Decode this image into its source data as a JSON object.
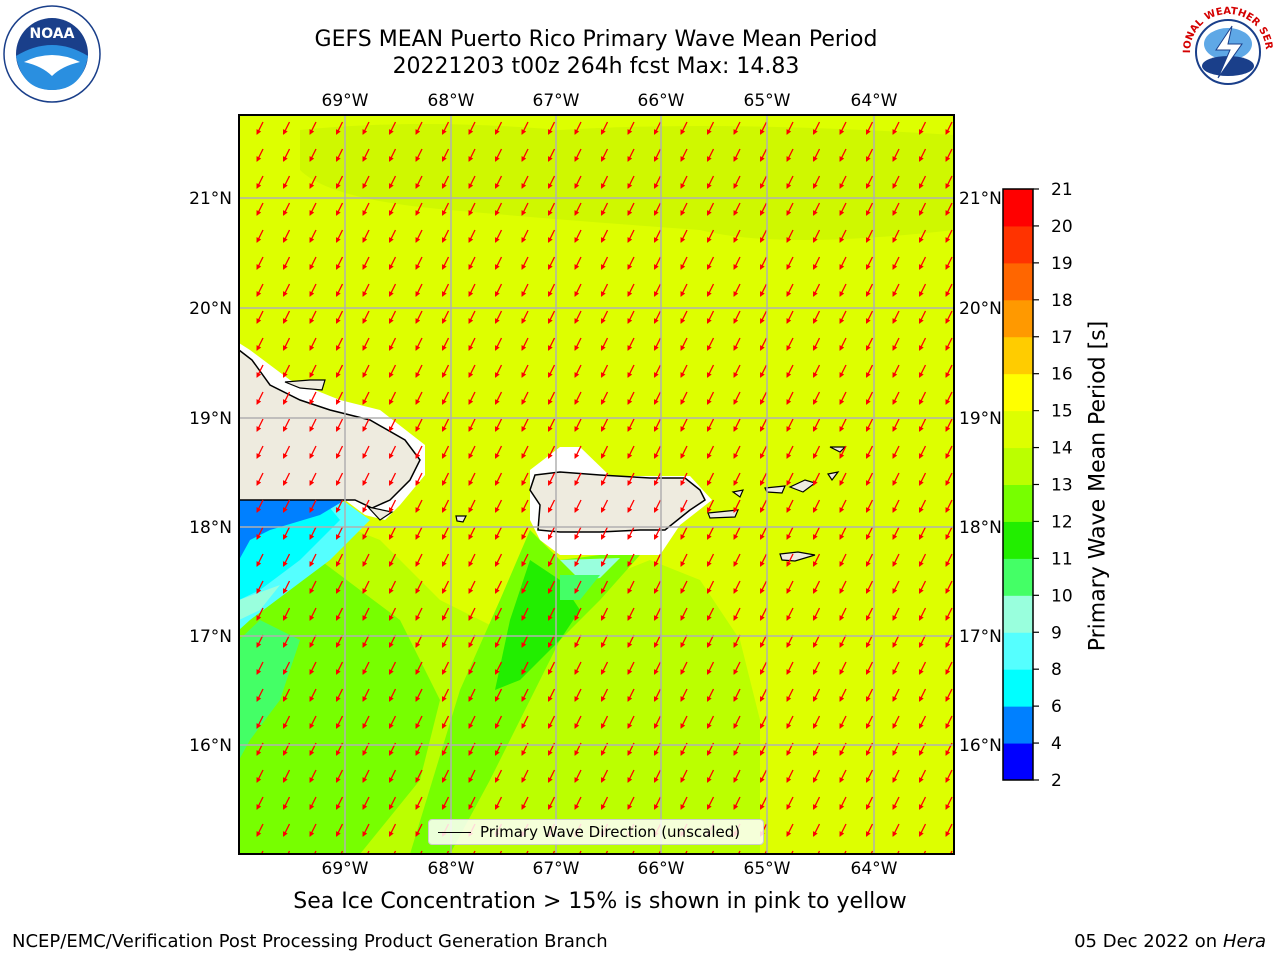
{
  "header": {
    "title_line1": "GEFS MEAN Puerto Rico Primary Wave Mean Period",
    "title_line2": "20221203 t00z 264h fcst   Max: 14.83"
  },
  "logos": {
    "noaa": {
      "text": "NOAA",
      "ring_text": "NATIONAL OCEANIC AND ATMOSPHERIC ADMINISTRATION · U.S. DEPARTMENT OF COMMERCE",
      "icon": "noaa-logo-icon"
    },
    "nws": {
      "ring_text": "NATIONAL WEATHER SERVICE",
      "icon": "nws-logo-icon"
    }
  },
  "map": {
    "lon_labels": [
      "69°W",
      "68°W",
      "67°W",
      "66°W",
      "65°W",
      "64°W"
    ],
    "lat_labels": [
      "21°N",
      "20°N",
      "19°N",
      "18°N",
      "17°N",
      "16°N"
    ],
    "legend_label": "Primary Wave Direction (unscaled)",
    "arrow_color": "#ff0000",
    "land_color": "#eeebdf",
    "mean_wave_direction_from": "NNE"
  },
  "colorbar": {
    "label": "Primary Wave Mean Period [s]",
    "ticks": [
      "2",
      "4",
      "6",
      "8",
      "9",
      "10",
      "11",
      "12",
      "13",
      "14",
      "15",
      "16",
      "17",
      "18",
      "19",
      "20",
      "21"
    ],
    "colors": [
      "#0000ff",
      "#0080ff",
      "#00ffff",
      "#55ffff",
      "#99ffdd",
      "#44ff66",
      "#22ee00",
      "#77ff00",
      "#bbff00",
      "#ddff00",
      "#ffff00",
      "#ffcc00",
      "#ff9900",
      "#ff6600",
      "#ff3300",
      "#ff0000"
    ]
  },
  "footer": {
    "note": "Sea Ice Concentration > 15% is shown in pink to yellow",
    "left": "NCEP/EMC/Verification Post Processing Product Generation Branch",
    "date": "05 Dec 2022 on",
    "host": "Hera"
  }
}
